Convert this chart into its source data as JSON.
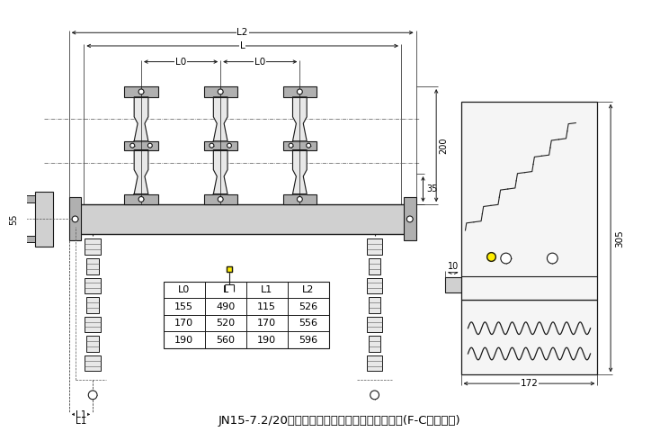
{
  "title": "JN15-7.2/20户内高压接地开关外形及安装尺寸图(F-C回路柜用)",
  "bg_color": "#ffffff",
  "table_headers": [
    "L0",
    "L",
    "L1",
    "L2"
  ],
  "table_data": [
    [
      "155",
      "490",
      "115",
      "526"
    ],
    [
      "170",
      "520",
      "170",
      "556"
    ],
    [
      "190",
      "560",
      "190",
      "596"
    ]
  ],
  "dim_L2": "L2",
  "dim_L": "L",
  "dim_L0": "L0",
  "dim_L1": "L1",
  "dim_55": "55",
  "dim_35": "35",
  "dim_200": "200",
  "dim_172": "172",
  "dim_10": "10",
  "dim_305": "305",
  "line_color": "#1a1a1a",
  "dash_color": "#555555",
  "fill_light": "#e8e8e8",
  "fill_medium": "#d0d0d0",
  "fill_dark": "#b0b0b0"
}
